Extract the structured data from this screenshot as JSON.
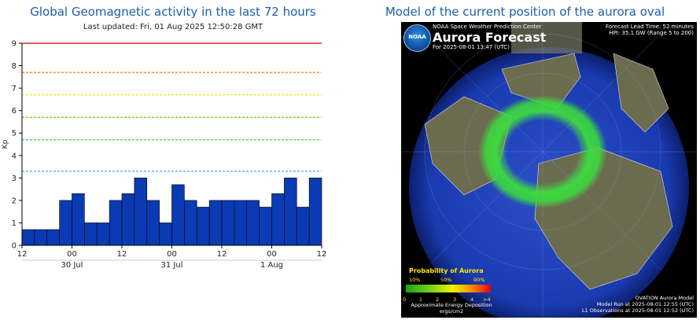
{
  "left_panel": {
    "title": "Global Geomagnetic activity in the last 72 hours",
    "subtitle": "Last updated: Fri, 01 Aug 2025 12:50:28 GMT"
  },
  "right_panel": {
    "title": "Model of the current position of the aurora oval",
    "map": {
      "header_center": "NOAA Space Weather Prediction Center",
      "forecast_title": "Aurora Forecast",
      "forecast_for": "For 2025-08-01 13:47 (UTC)",
      "lead_time": "Forecast Lead Time:  52 minutes",
      "hpi": "HPI:  35.1 GW (Range 5 to 200)",
      "logo_text": "NOAA",
      "probability_title": "Probability of Aurora",
      "pct_labels": [
        "10%",
        "50%",
        "90%"
      ],
      "scale_labels": [
        "0",
        "1",
        "2",
        "3",
        "4",
        ">4"
      ],
      "energy_label": "Approximate Energy Deposition ergs/cm2",
      "model_name": "OVATION Aurora Model",
      "model_run": "Model Run at 2025-08-01 12:55 (UTC)",
      "l1_obs": "L1 Observations at 2025-08-01 12:52 (UTC)",
      "colors": {
        "ocean": "#1a3bb0",
        "land": "#6b6b50",
        "aurora": "#3ddc3d"
      }
    }
  },
  "chart_data": {
    "type": "bar",
    "ylabel": "Kp",
    "ylim": [
      0,
      9
    ],
    "yticks": [
      0,
      1,
      2,
      3,
      4,
      5,
      6,
      7,
      8,
      9
    ],
    "xtick_labels": [
      "12",
      "00",
      "12",
      "00",
      "12",
      "00",
      "12"
    ],
    "date_labels": [
      "30 Jul",
      "31 Jul",
      "1 Aug"
    ],
    "bar_color": "#0a3bb5",
    "values": [
      0.7,
      0.7,
      0.7,
      2.0,
      2.3,
      1.0,
      1.0,
      2.0,
      2.3,
      3.0,
      2.0,
      1.0,
      2.7,
      2.0,
      1.7,
      2.0,
      2.0,
      2.0,
      2.0,
      1.7,
      2.3,
      3.0,
      1.7,
      3.0
    ],
    "threshold_lines": [
      {
        "value": 9,
        "color": "#d40000",
        "style": "solid"
      },
      {
        "value": 7.7,
        "color": "#ff7a00",
        "style": "dashed"
      },
      {
        "value": 6.7,
        "color": "#f0e000",
        "style": "dashed"
      },
      {
        "value": 5.7,
        "color": "#66cc00",
        "style": "dashed"
      },
      {
        "value": 4.7,
        "color": "#33cc33",
        "style": "dashed"
      },
      {
        "value": 3.3,
        "color": "#33aaff",
        "style": "dashed"
      }
    ],
    "grid": false
  }
}
